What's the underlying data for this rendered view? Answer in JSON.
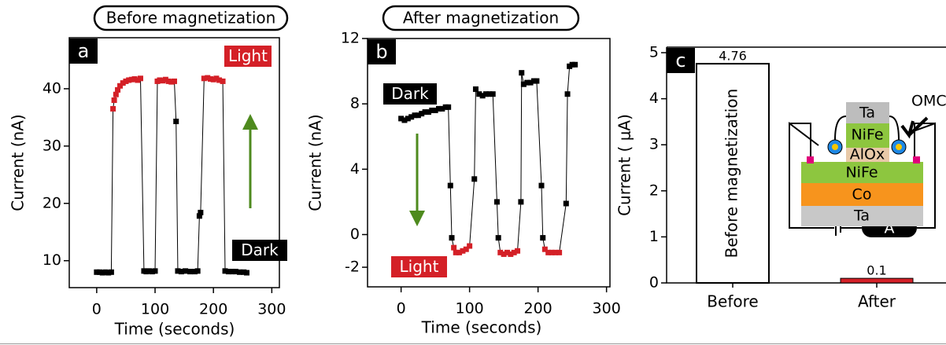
{
  "chart_data": [
    {
      "type": "scatter",
      "panel": "a",
      "heading": "Before magnetization",
      "x_label": "Time (seconds)",
      "y_label": "Current (nA)",
      "xlim": [
        -47,
        313
      ],
      "ylim": [
        5.3,
        48.9
      ],
      "xticks": [
        0,
        100,
        200,
        300
      ],
      "yticks": [
        10,
        20,
        30,
        40
      ],
      "annotations": [
        {
          "text": "Light",
          "color": "#d42027"
        },
        {
          "text": "Dark",
          "color": "#000000"
        }
      ],
      "series": [
        {
          "x": [
            0,
            5,
            10,
            15,
            20,
            25,
            28,
            30,
            33,
            36,
            40,
            45,
            50,
            55,
            60,
            65,
            70,
            75,
            81,
            85,
            90,
            95,
            100,
            104,
            108,
            113,
            118,
            123,
            128,
            133,
            136,
            139,
            145,
            152,
            160,
            168,
            173,
            176,
            178,
            184,
            190,
            195,
            200,
            205,
            210,
            216,
            220,
            226,
            232,
            238,
            245,
            252,
            257
          ],
          "values": [
            8,
            8,
            7.9,
            8,
            7.9,
            8,
            36.5,
            38,
            39,
            39.8,
            40.5,
            41,
            41.3,
            41.5,
            41.6,
            41.7,
            41.5,
            41.8,
            8.2,
            8.1,
            8.2,
            8.1,
            8.2,
            41.3,
            41.5,
            41.4,
            41.6,
            41.3,
            41.2,
            41.3,
            34.3,
            8.2,
            8.1,
            8.2,
            8.1,
            8.1,
            8.2,
            17.8,
            18.4,
            41.8,
            41.9,
            41.7,
            41.6,
            41.8,
            41.5,
            41.3,
            8.2,
            8.1,
            8.1,
            8.1,
            8,
            8,
            7.9
          ],
          "point_colors": [
            "#000000",
            "#000000",
            "#000000",
            "#000000",
            "#000000",
            "#000000",
            "#d42027",
            "#d42027",
            "#d42027",
            "#d42027",
            "#d42027",
            "#d42027",
            "#d42027",
            "#d42027",
            "#d42027",
            "#d42027",
            "#d42027",
            "#d42027",
            "#000000",
            "#000000",
            "#000000",
            "#000000",
            "#000000",
            "#d42027",
            "#d42027",
            "#d42027",
            "#d42027",
            "#d42027",
            "#d42027",
            "#d42027",
            "#000000",
            "#000000",
            "#000000",
            "#000000",
            "#000000",
            "#000000",
            "#000000",
            "#000000",
            "#000000",
            "#d42027",
            "#d42027",
            "#d42027",
            "#d42027",
            "#d42027",
            "#d42027",
            "#d42027",
            "#000000",
            "#000000",
            "#000000",
            "#000000",
            "#000000",
            "#000000",
            "#000000"
          ]
        }
      ]
    },
    {
      "type": "scatter",
      "panel": "b",
      "heading": "After magnetization",
      "x_label": "Time (seconds)",
      "y_label": "Current (nA)",
      "xlim": [
        -49,
        305
      ],
      "ylim": [
        -3.2,
        12
      ],
      "xticks": [
        0,
        100,
        200,
        300
      ],
      "yticks": [
        -2,
        0,
        4,
        8,
        12
      ],
      "annotations": [
        {
          "text": "Dark",
          "color": "#000000"
        },
        {
          "text": "Light",
          "color": "#d42027"
        }
      ],
      "series": [
        {
          "x": [
            0,
            5,
            10,
            15,
            20,
            25,
            30,
            35,
            40,
            45,
            50,
            55,
            60,
            65,
            69,
            72,
            74,
            77,
            80,
            85,
            90,
            95,
            100,
            107,
            109,
            114,
            119,
            124,
            129,
            134,
            140,
            142,
            145,
            150,
            155,
            160,
            165,
            170,
            175,
            176,
            179,
            184,
            189,
            194,
            198,
            205,
            207,
            210,
            215,
            220,
            225,
            231,
            241,
            243,
            246,
            250,
            254
          ],
          "values": [
            7.1,
            7,
            7.1,
            7.2,
            7.3,
            7.3,
            7.4,
            7.5,
            7.5,
            7.6,
            7.6,
            7.7,
            7.7,
            7.8,
            7.8,
            3,
            -0.2,
            -0.8,
            -1.1,
            -1.1,
            -1,
            -0.9,
            -0.7,
            3.4,
            8.9,
            8.6,
            8.5,
            8.6,
            8.6,
            8.6,
            2,
            -0.2,
            -1.1,
            -1.2,
            -1.1,
            -1.2,
            -1.1,
            -1,
            2,
            9.9,
            9.2,
            9.3,
            9.3,
            9.4,
            9.4,
            3,
            -0.2,
            -0.9,
            -1.1,
            -1.1,
            -1.1,
            -1.1,
            1.9,
            8.6,
            10.3,
            10.4,
            10.4
          ],
          "point_colors": [
            "#000000",
            "#000000",
            "#000000",
            "#000000",
            "#000000",
            "#000000",
            "#000000",
            "#000000",
            "#000000",
            "#000000",
            "#000000",
            "#000000",
            "#000000",
            "#000000",
            "#000000",
            "#000000",
            "#000000",
            "#d42027",
            "#d42027",
            "#d42027",
            "#d42027",
            "#d42027",
            "#d42027",
            "#000000",
            "#000000",
            "#000000",
            "#000000",
            "#000000",
            "#000000",
            "#000000",
            "#000000",
            "#000000",
            "#d42027",
            "#d42027",
            "#d42027",
            "#d42027",
            "#d42027",
            "#d42027",
            "#000000",
            "#000000",
            "#000000",
            "#000000",
            "#000000",
            "#000000",
            "#000000",
            "#000000",
            "#000000",
            "#d42027",
            "#d42027",
            "#d42027",
            "#d42027",
            "#d42027",
            "#000000",
            "#000000",
            "#000000",
            "#000000",
            "#000000"
          ]
        }
      ]
    },
    {
      "type": "bar",
      "panel": "c",
      "y_label": "Current ( μA)",
      "categories": [
        "Before",
        "After"
      ],
      "values": [
        4.76,
        0.1
      ],
      "colors": [
        "#ffffff",
        "#d42027"
      ],
      "ylim": [
        0,
        5.12
      ],
      "yticks": [
        0,
        1,
        2,
        3,
        4,
        5
      ],
      "annotations": [
        {
          "text": "Before magnetization"
        }
      ]
    }
  ],
  "inset": {
    "layers": [
      "Ta",
      "NiFe",
      "AlOx",
      "NiFe",
      "Co",
      "Ta"
    ],
    "omc": "OMC",
    "meter": "A"
  }
}
